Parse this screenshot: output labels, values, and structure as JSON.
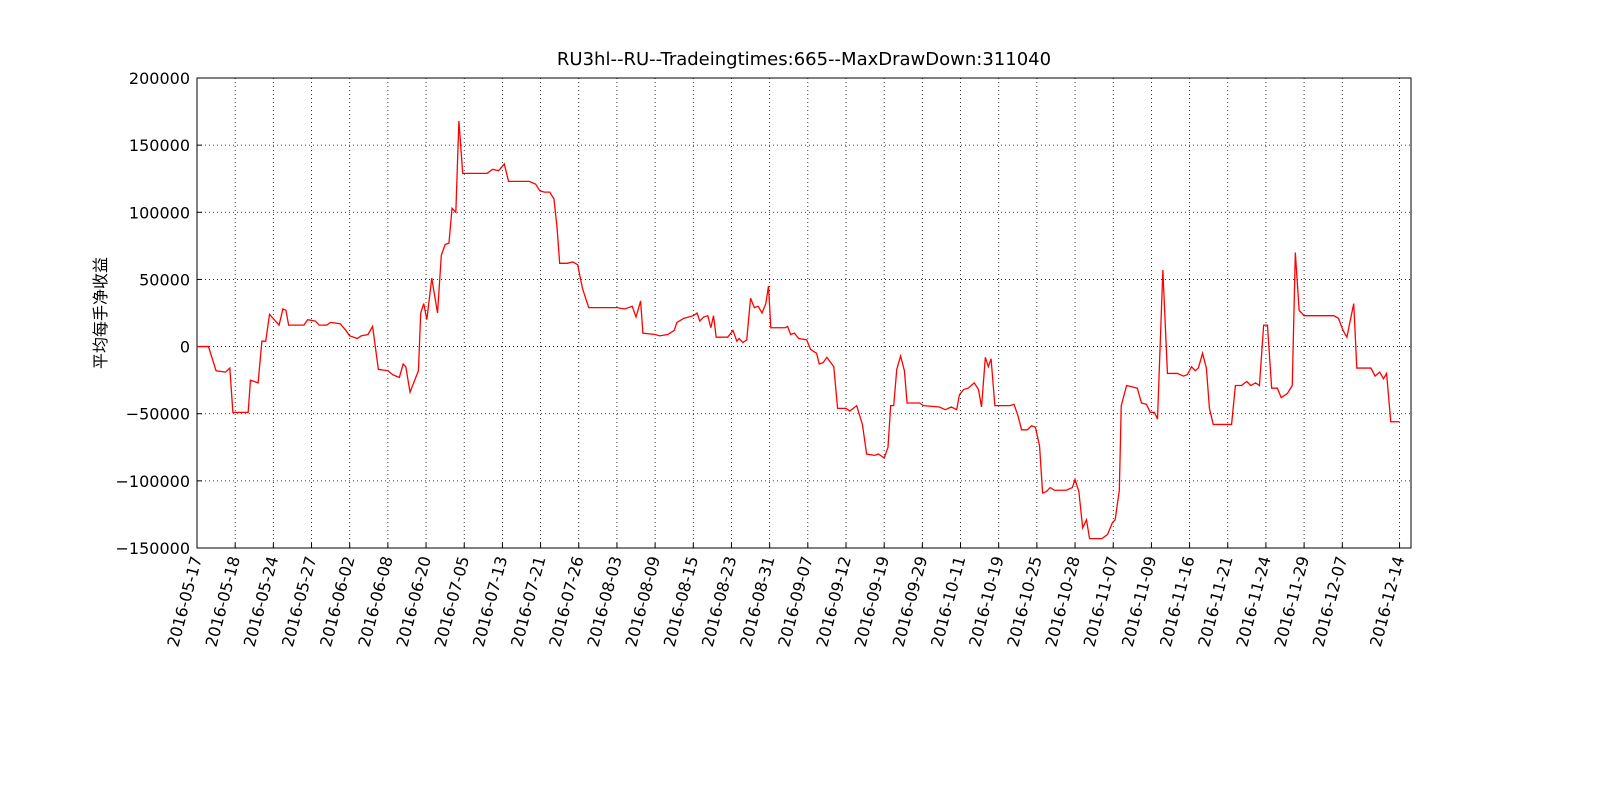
{
  "chart_data": {
    "type": "line",
    "title": "RU3hl--RU--Tradeingtimes:665--MaxDrawDown:311040",
    "ylabel": "平均每手净收益",
    "color": "#ff0000",
    "grid": true,
    "xlim": [
      0,
      318
    ],
    "ylim": [
      -150000,
      200000
    ],
    "yticks": [
      {
        "value": -150000,
        "label": "−150000"
      },
      {
        "value": -100000,
        "label": "−100000"
      },
      {
        "value": -50000,
        "label": "−50000"
      },
      0,
      50000,
      100000,
      150000,
      200000
    ],
    "xticks": [
      {
        "value": 0,
        "label": "2016-05-17"
      },
      {
        "value": 10,
        "label": "2016-05-18"
      },
      {
        "value": 20,
        "label": "2016-05-24"
      },
      {
        "value": 30,
        "label": "2016-05-27"
      },
      {
        "value": 40,
        "label": "2016-06-02"
      },
      {
        "value": 50,
        "label": "2016-06-08"
      },
      {
        "value": 60,
        "label": "2016-06-20"
      },
      {
        "value": 70,
        "label": "2016-07-05"
      },
      {
        "value": 80,
        "label": "2016-07-13"
      },
      {
        "value": 90,
        "label": "2016-07-21"
      },
      {
        "value": 100,
        "label": "2016-07-26"
      },
      {
        "value": 110,
        "label": "2016-08-03"
      },
      {
        "value": 120,
        "label": "2016-08-09"
      },
      {
        "value": 130,
        "label": "2016-08-15"
      },
      {
        "value": 140,
        "label": "2016-08-23"
      },
      {
        "value": 150,
        "label": "2016-08-31"
      },
      {
        "value": 160,
        "label": "2016-09-07"
      },
      {
        "value": 170,
        "label": "2016-09-12"
      },
      {
        "value": 180,
        "label": "2016-09-19"
      },
      {
        "value": 190,
        "label": "2016-09-29"
      },
      {
        "value": 200,
        "label": "2016-10-11"
      },
      {
        "value": 210,
        "label": "2016-10-19"
      },
      {
        "value": 220,
        "label": "2016-10-25"
      },
      {
        "value": 230,
        "label": "2016-10-28"
      },
      {
        "value": 240,
        "label": "2016-11-07"
      },
      {
        "value": 250,
        "label": "2016-11-09"
      },
      {
        "value": 260,
        "label": "2016-11-16"
      },
      {
        "value": 270,
        "label": "2016-11-21"
      },
      {
        "value": 280,
        "label": "2016-11-24"
      },
      {
        "value": 290,
        "label": "2016-11-29"
      },
      {
        "value": 300,
        "label": "2016-12-07"
      },
      {
        "value": 315,
        "label": "2016-12-14"
      }
    ],
    "x": [
      0,
      3,
      5,
      7.5,
      8.6,
      9.4,
      12.6,
      13.4,
      14,
      16,
      17,
      18,
      19,
      21.5,
      22.5,
      23.3,
      24,
      28,
      29,
      31,
      32,
      34,
      35,
      37.5,
      39,
      40,
      42,
      43,
      44.8,
      46,
      47.5,
      50,
      51.3,
      53,
      54,
      54.7,
      55.8,
      58,
      58.6,
      59.4,
      60.2,
      61.5,
      63,
      64,
      65,
      66,
      66.8,
      67.8,
      68.6,
      69.6,
      76,
      77.4,
      79,
      80.5,
      81.6,
      87,
      88.7,
      89.8,
      91,
      92.4,
      93.5,
      94.3,
      95,
      97,
      98.4,
      99.7,
      101,
      102.6,
      105.5,
      110,
      112,
      114,
      115,
      116.2,
      116.8,
      120,
      121.2,
      123.3,
      125,
      125.7,
      127.5,
      130,
      131,
      131.7,
      132.7,
      133.8,
      134.6,
      135.3,
      136,
      139,
      140.4,
      141.4,
      142,
      143,
      144,
      145,
      146,
      147,
      148,
      149,
      149.7,
      150.3,
      154,
      154.7,
      155.5,
      156.5,
      157.6,
      159.7,
      160.7,
      162.3,
      163,
      164,
      165,
      166.8,
      167.8,
      170,
      171,
      172.8,
      174.3,
      175.4,
      177.5,
      178.5,
      180,
      181,
      181.7,
      182.5,
      183.3,
      184.3,
      185.3,
      186,
      189.3,
      190.3,
      194.5,
      196,
      197.6,
      199,
      199.7,
      200.8,
      202,
      203.6,
      204.7,
      205.5,
      206.5,
      207.3,
      208,
      209,
      213,
      214,
      215,
      216,
      217.5,
      218.6,
      219.6,
      220.7,
      221.5,
      222.5,
      223.5,
      224.6,
      227.7,
      229.3,
      230,
      231,
      232,
      233,
      233.8,
      237,
      238.5,
      239.8,
      240.5,
      241.6,
      242.1,
      243.5,
      245,
      246.3,
      247.4,
      248.7,
      249.7,
      250.8,
      251.6,
      253,
      254.2,
      256.8,
      258.4,
      259.4,
      260.5,
      261.5,
      262.3,
      263.4,
      264.4,
      265.2,
      266.2,
      271,
      272,
      273.6,
      275,
      276,
      277.3,
      278.3,
      279.4,
      280.4,
      281.5,
      283,
      284,
      285.6,
      286.9,
      287.7,
      288.7,
      290,
      293.6,
      297.8,
      299,
      300.2,
      301.2,
      303,
      303.8,
      307.5,
      308.6,
      309.8,
      310.8,
      311.6,
      312.7,
      315
    ],
    "values": [
      0,
      0,
      -18000,
      -19000,
      -16000,
      -49000,
      -49000,
      -49000,
      -25000,
      -27000,
      4000,
      4000,
      24000,
      16000,
      28000,
      27000,
      16000,
      16000,
      20000,
      19000,
      16000,
      16000,
      18000,
      17000,
      12000,
      8000,
      6000,
      8000,
      9000,
      15000,
      -17000,
      -18000,
      -21000,
      -23000,
      -13000,
      -15000,
      -34000,
      -18000,
      25000,
      32000,
      20000,
      51000,
      25000,
      68000,
      76000,
      77000,
      103000,
      100000,
      168000,
      129000,
      129000,
      132000,
      131000,
      136000,
      123000,
      123000,
      121000,
      116000,
      115000,
      115000,
      110000,
      89000,
      62000,
      62000,
      63000,
      61000,
      43000,
      29000,
      29000,
      29000,
      28000,
      30000,
      22000,
      34000,
      10000,
      9000,
      8000,
      9000,
      12000,
      18000,
      21000,
      23000,
      25000,
      19000,
      22000,
      23000,
      14000,
      23000,
      7000,
      7000,
      12000,
      4000,
      6000,
      3000,
      5000,
      36000,
      29000,
      30000,
      25000,
      32000,
      45000,
      14000,
      14000,
      15000,
      9000,
      10000,
      6000,
      5000,
      -2000,
      -5000,
      -13000,
      -12000,
      -8000,
      -15000,
      -46000,
      -46000,
      -48000,
      -44000,
      -58000,
      -80000,
      -81000,
      -80000,
      -83000,
      -75000,
      -44000,
      -44000,
      -17000,
      -7000,
      -18000,
      -42000,
      -42000,
      -44000,
      -45000,
      -47000,
      -45000,
      -47000,
      -36000,
      -32000,
      -31000,
      -27000,
      -32000,
      -45000,
      -8000,
      -15000,
      -9000,
      -44000,
      -44000,
      -43000,
      -51000,
      -62000,
      -62000,
      -59000,
      -60000,
      -74000,
      -109000,
      -108000,
      -105000,
      -107000,
      -107000,
      -105000,
      -99000,
      -108000,
      -135000,
      -129000,
      -143000,
      -143000,
      -140000,
      -131000,
      -129000,
      -107000,
      -44000,
      -29000,
      -30000,
      -31000,
      -42000,
      -43000,
      -49000,
      -49000,
      -54000,
      57000,
      -20000,
      -20000,
      -22000,
      -21000,
      -15000,
      -18000,
      -16000,
      -5000,
      -16000,
      -46000,
      -58000,
      -58000,
      -29000,
      -29000,
      -26000,
      -29000,
      -27000,
      -29000,
      16000,
      16000,
      -31000,
      -31000,
      -38000,
      -35000,
      -29000,
      70000,
      27000,
      23000,
      23000,
      23000,
      21000,
      12000,
      7000,
      32000,
      -16000,
      -16000,
      -22000,
      -19000,
      -24000,
      -20000,
      -56000,
      -56000
    ]
  }
}
